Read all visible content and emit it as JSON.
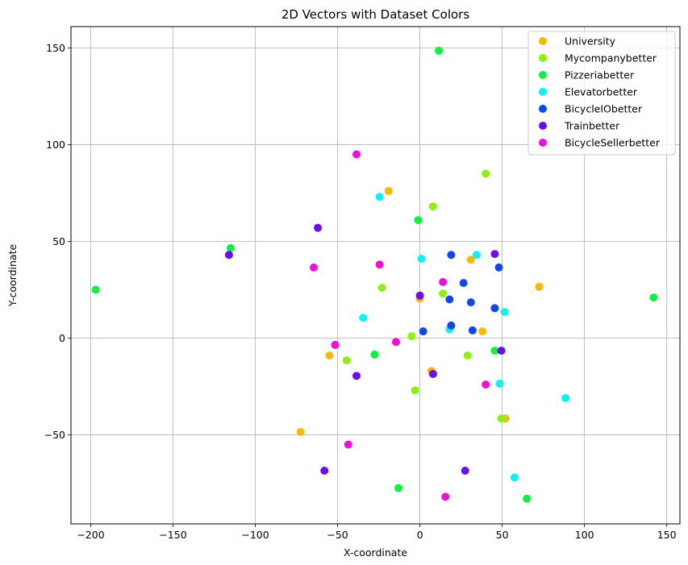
{
  "chart_data": {
    "type": "scatter",
    "title": "2D Vectors with Dataset Colors",
    "xlabel": "X-coordinate",
    "ylabel": "Y-coordinate",
    "xlim": [
      -212,
      158
    ],
    "ylim": [
      -96,
      161
    ],
    "xticks": [
      -200,
      -150,
      -100,
      -50,
      0,
      50,
      100,
      150
    ],
    "yticks": [
      -50,
      0,
      50,
      100,
      150
    ],
    "grid": true,
    "legend_position": "top-right",
    "series": [
      {
        "name": "University",
        "color": "#ffb700",
        "points": [
          [
            -19,
            76
          ],
          [
            31,
            40.5
          ],
          [
            72.5,
            26.5
          ],
          [
            0,
            20.5
          ],
          [
            38,
            3.5
          ],
          [
            -55,
            -9
          ],
          [
            7,
            -17
          ],
          [
            52,
            -41.5
          ],
          [
            -72.5,
            -48.5
          ]
        ]
      },
      {
        "name": "Mycompanybetter",
        "color": "#8cf20d",
        "points": [
          [
            40,
            85
          ],
          [
            8,
            68
          ],
          [
            -23,
            26
          ],
          [
            14,
            23
          ],
          [
            -5,
            1
          ],
          [
            -44.5,
            -11.5
          ],
          [
            29,
            -9
          ],
          [
            -3,
            -27
          ],
          [
            49.5,
            -41.5
          ]
        ]
      },
      {
        "name": "Pizzeriabetter",
        "color": "#0df23d",
        "points": [
          [
            11.5,
            148.5
          ],
          [
            -1,
            61
          ],
          [
            -115,
            46.5
          ],
          [
            -197,
            25
          ],
          [
            142,
            21
          ],
          [
            -27.5,
            -8.5
          ],
          [
            45.5,
            -6.5
          ],
          [
            -13,
            -77.5
          ],
          [
            65,
            -83
          ]
        ]
      },
      {
        "name": "Elevatorbetter",
        "color": "#0df2f2",
        "points": [
          [
            -24.5,
            73
          ],
          [
            1,
            41
          ],
          [
            34.5,
            43
          ],
          [
            51.5,
            13.5
          ],
          [
            -34.5,
            10.5
          ],
          [
            18,
            4.5
          ],
          [
            48.5,
            -23.5
          ],
          [
            88.5,
            -31
          ],
          [
            57.5,
            -72
          ]
        ]
      },
      {
        "name": "BicycleIObetter",
        "color": "#0d47f2",
        "points": [
          [
            19,
            43
          ],
          [
            48,
            36.5
          ],
          [
            26.5,
            28.5
          ],
          [
            18,
            20
          ],
          [
            31,
            18.5
          ],
          [
            45.5,
            15.5
          ],
          [
            19,
            6.5
          ],
          [
            2,
            3.5
          ],
          [
            32,
            4
          ]
        ]
      },
      {
        "name": "Trainbetter",
        "color": "#6f0df2",
        "points": [
          [
            -62,
            57
          ],
          [
            -116,
            43
          ],
          [
            45.5,
            43.5
          ],
          [
            0,
            22
          ],
          [
            49.5,
            -6.5
          ],
          [
            -38.5,
            -19.5
          ],
          [
            8,
            -18.5
          ],
          [
            -58,
            -68.5
          ],
          [
            27.5,
            -68.5
          ]
        ]
      },
      {
        "name": "BicycleSellerbetter",
        "color": "#f20dd8",
        "points": [
          [
            -38.5,
            95
          ],
          [
            -64.5,
            36.5
          ],
          [
            -24.5,
            38
          ],
          [
            14,
            29
          ],
          [
            -51.5,
            -3.5
          ],
          [
            -14.5,
            -2
          ],
          [
            40,
            -24
          ],
          [
            -43.5,
            -55
          ],
          [
            15.5,
            -82
          ]
        ]
      }
    ]
  }
}
